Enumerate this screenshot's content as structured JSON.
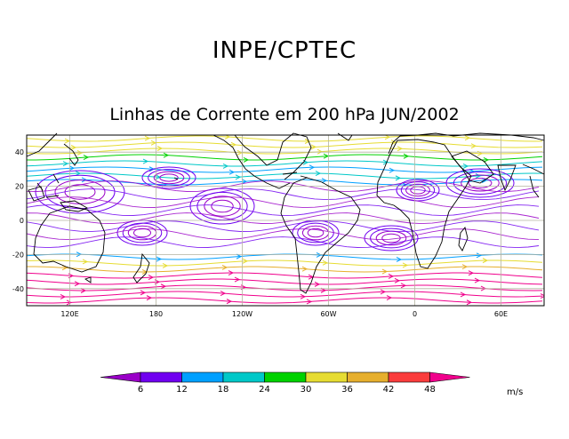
{
  "header": {
    "org": "INPE/CPTEC",
    "title": "Linhas de Corrente em 200 hPa JUN/2002"
  },
  "map": {
    "lon_labels": [
      "120E",
      "180",
      "120W",
      "60W",
      "0",
      "60E"
    ],
    "lat_labels": [
      "40",
      "20",
      "0",
      "-20",
      "-40"
    ],
    "lon_range": [
      90,
      450
    ],
    "lat_range": [
      -50,
      50
    ],
    "grid": true
  },
  "legend": {
    "unit": "m/s",
    "ticks": [
      "6",
      "12",
      "18",
      "24",
      "30",
      "36",
      "42",
      "48"
    ],
    "colors": [
      "#9a00c8",
      "#7000f0",
      "#00a0ff",
      "#00c8c8",
      "#00d200",
      "#e6dc32",
      "#e6af2d",
      "#fa3c3c",
      "#f0008c"
    ]
  }
}
